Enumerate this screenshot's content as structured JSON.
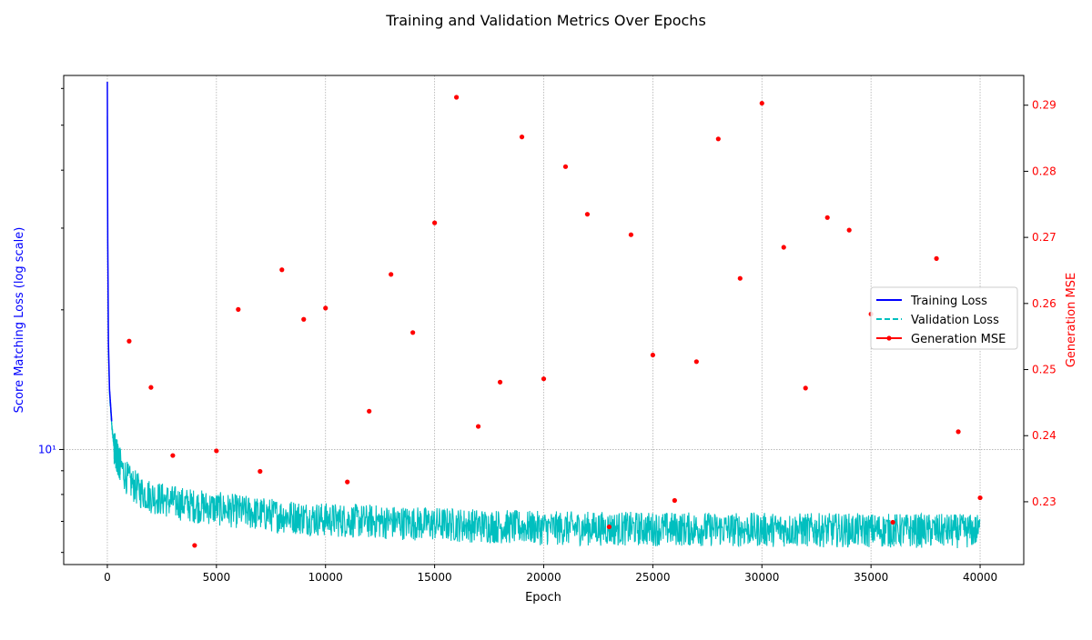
{
  "chart_data": {
    "type": "line",
    "title": "Training and Validation Metrics Over Epochs",
    "xlabel": "Epoch",
    "ylabel_left": "Score Matching Loss (log scale)",
    "ylabel_right": "Generation MSE",
    "x_range": [
      -2000,
      42000
    ],
    "x_ticks": [
      0,
      5000,
      10000,
      15000,
      20000,
      25000,
      30000,
      35000,
      40000
    ],
    "y_left_scale": "log",
    "y_left_range": [
      5.65,
      64
    ],
    "y_left_ticks": [
      {
        "value": 10,
        "label": "10¹"
      }
    ],
    "y_right_range": [
      0.2205,
      0.2945
    ],
    "y_right_ticks": [
      0.23,
      0.24,
      0.25,
      0.26,
      0.27,
      0.28,
      0.29
    ],
    "grid": true,
    "legend_position": "center-right",
    "colors": {
      "training": "#0000ff",
      "validation": "#00bfbf",
      "mse": "#ff0000",
      "left_axis": "#0000ff",
      "right_axis": "#ff0000"
    },
    "series": [
      {
        "name": "Training Loss",
        "style": "solid",
        "x": [
          0,
          2,
          5,
          10,
          20,
          50,
          100,
          200,
          300,
          500,
          750,
          1000,
          1500,
          2000,
          3000,
          4000,
          5000,
          7000,
          10000,
          15000,
          20000,
          30000,
          40000
        ],
        "y": [
          62,
          58,
          50,
          40,
          28,
          17,
          13.5,
          11.5,
          10.3,
          9.6,
          9.0,
          8.6,
          8.2,
          8.0,
          7.75,
          7.6,
          7.5,
          7.3,
          7.1,
          6.95,
          6.8,
          6.75,
          6.7
        ]
      },
      {
        "name": "Validation Loss",
        "style": "dashed",
        "x": [
          0,
          2,
          5,
          10,
          20,
          50,
          100,
          200,
          300,
          500,
          750,
          1000,
          1500,
          2000,
          3000,
          4000,
          5000,
          7000,
          10000,
          15000,
          20000,
          30000,
          40000
        ],
        "y": [
          52,
          48,
          42,
          35,
          26,
          16.5,
          13.2,
          11.3,
          10.2,
          9.5,
          8.95,
          8.55,
          8.15,
          7.95,
          7.72,
          7.58,
          7.48,
          7.28,
          7.08,
          6.93,
          6.79,
          6.74,
          6.69
        ]
      },
      {
        "name": "Generation MSE",
        "style": "markers",
        "x": [
          1000,
          2000,
          3000,
          4000,
          5000,
          6000,
          7000,
          8000,
          9000,
          10000,
          11000,
          12000,
          13000,
          14000,
          15000,
          16000,
          17000,
          18000,
          19000,
          20000,
          21000,
          22000,
          23000,
          24000,
          25000,
          26000,
          27000,
          28000,
          29000,
          30000,
          31000,
          32000,
          33000,
          34000,
          35000,
          36000,
          38000,
          39000,
          40000
        ],
        "y": [
          0.2543,
          0.2473,
          0.237,
          0.2234,
          0.2377,
          0.2591,
          0.2346,
          0.2651,
          0.2576,
          0.2593,
          0.233,
          0.2437,
          0.2644,
          0.2556,
          0.2722,
          0.2912,
          0.2414,
          0.2481,
          0.2852,
          0.2486,
          0.2807,
          0.2735,
          0.2262,
          0.2704,
          0.2522,
          0.2302,
          0.2512,
          0.2849,
          0.2638,
          0.2903,
          0.2685,
          0.2472,
          0.273,
          0.2711,
          0.2584,
          0.2269,
          0.2668,
          0.2406,
          0.2306
        ]
      }
    ]
  }
}
